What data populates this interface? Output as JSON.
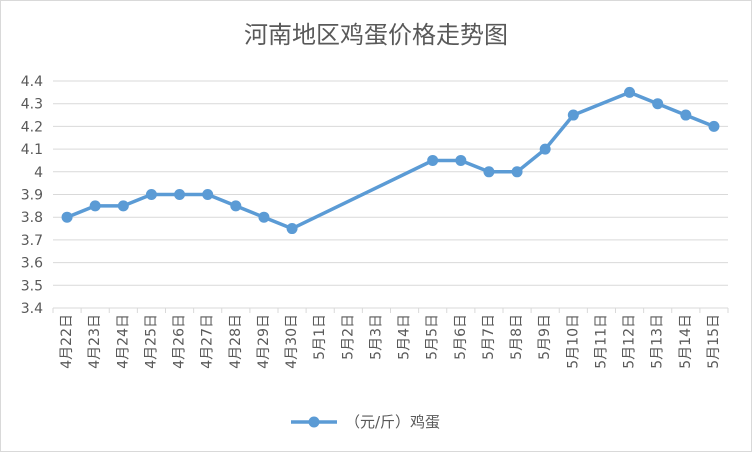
{
  "chart_data": {
    "type": "line",
    "title": "河南地区鸡蛋价格走势图",
    "categories": [
      "4月22日",
      "4月23日",
      "4月24日",
      "4月25日",
      "4月26日",
      "4月27日",
      "4月28日",
      "4月29日",
      "4月30日",
      "5月1日",
      "5月2日",
      "5月3日",
      "5月4日",
      "5月5日",
      "5月6日",
      "5月7日",
      "5月8日",
      "5月9日",
      "5月10日",
      "5月11日",
      "5月12日",
      "5月13日",
      "5月14日",
      "5月15日"
    ],
    "series": [
      {
        "name": "（元/斤）鸡蛋",
        "color": "#5b9bd5",
        "values": [
          3.8,
          3.85,
          3.85,
          3.9,
          3.9,
          3.9,
          3.85,
          3.8,
          3.75,
          null,
          null,
          null,
          null,
          4.05,
          4.05,
          4.0,
          4.0,
          4.1,
          4.25,
          null,
          4.35,
          4.3,
          4.25,
          4.2
        ]
      }
    ],
    "yticks": [
      "3.4",
      "3.5",
      "3.6",
      "3.7",
      "3.8",
      "3.9",
      "4",
      "4.1",
      "4.2",
      "4.3",
      "4.4"
    ],
    "ylim": [
      3.4,
      4.4
    ],
    "grid": true,
    "legend": "bottom"
  }
}
